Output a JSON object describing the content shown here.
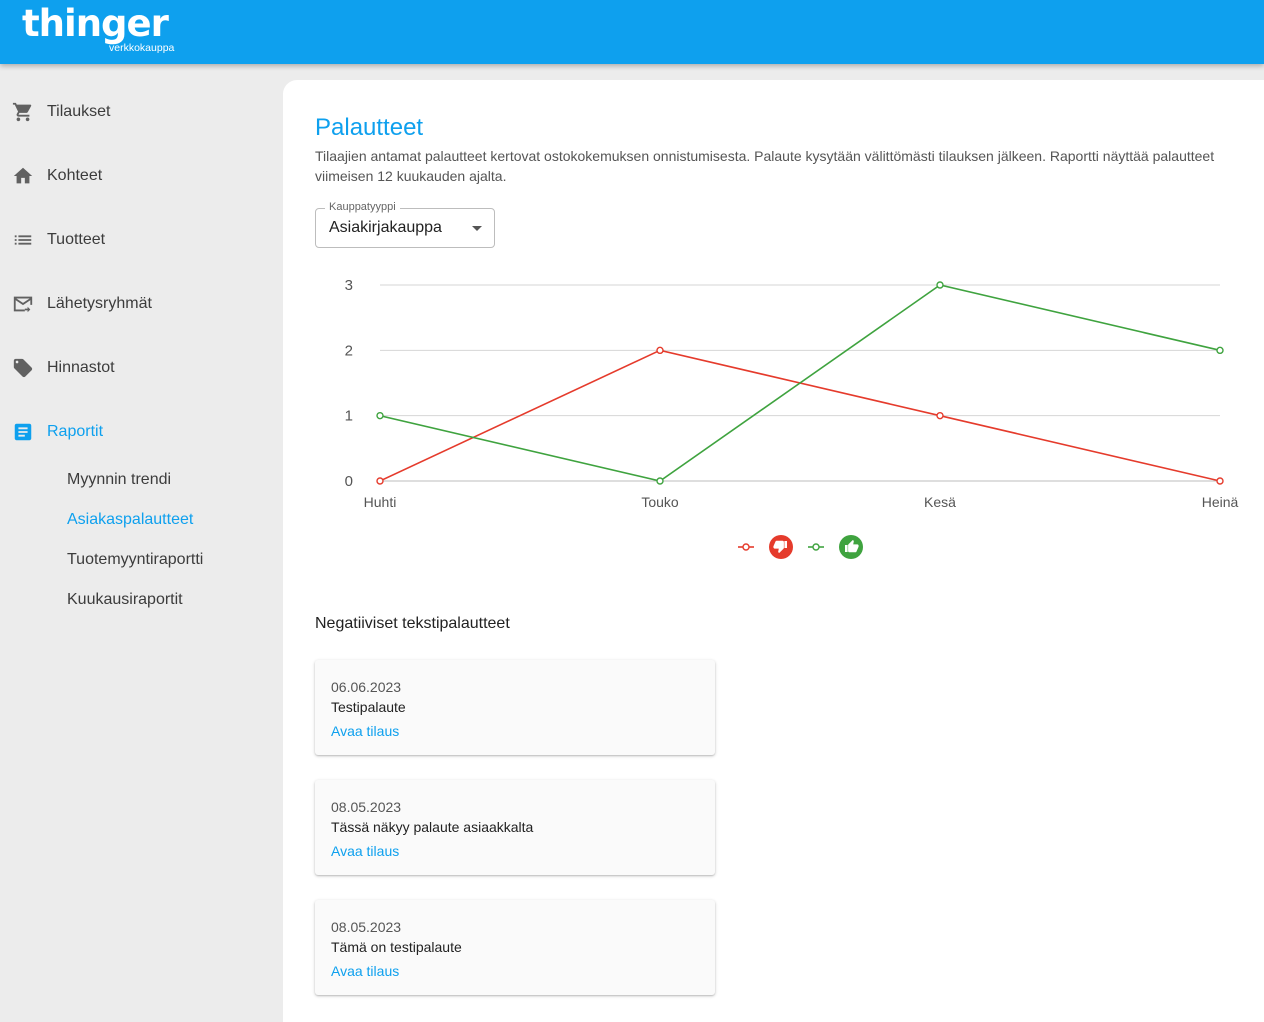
{
  "brand": {
    "name": "thinger",
    "subtitle": "verkkokauppa"
  },
  "sidebar": {
    "items": [
      {
        "label": "Tilaukset",
        "icon": "cart-icon"
      },
      {
        "label": "Kohteet",
        "icon": "home-icon"
      },
      {
        "label": "Tuotteet",
        "icon": "list-icon"
      },
      {
        "label": "Lähetysryhmät",
        "icon": "mail-forward-icon"
      },
      {
        "label": "Hinnastot",
        "icon": "tag-icon"
      },
      {
        "label": "Raportit",
        "icon": "report-icon",
        "active": true
      }
    ],
    "subitems": [
      {
        "label": "Myynnin trendi"
      },
      {
        "label": "Asiakaspalautteet",
        "active": true
      },
      {
        "label": "Tuotemyyntiraportti"
      },
      {
        "label": "Kuukausiraportit"
      }
    ]
  },
  "main": {
    "title": "Palautteet",
    "description": "Tilaajien antamat palautteet kertovat ostokokemuksen onnistumisesta. Palaute kysytään välittömästi tilauksen jälkeen. Raportti näyttää palautteet viimeisen 12 kuukauden ajalta.",
    "select": {
      "label": "Kauppatyyppi",
      "value": "Asiakirjakauppa"
    },
    "negative_title": "Negatiiviset tekstipalautteet",
    "feedback": [
      {
        "date": "06.06.2023",
        "text": "Testipalaute",
        "link": "Avaa tilaus"
      },
      {
        "date": "08.05.2023",
        "text": "Tässä näkyy palaute asiaakkalta",
        "link": "Avaa tilaus"
      },
      {
        "date": "08.05.2023",
        "text": "Tämä on testipalaute",
        "link": "Avaa tilaus"
      }
    ]
  },
  "colors": {
    "accent": "#0ea0ee",
    "negative": "#e53b2c",
    "positive": "#3fa33f"
  },
  "chart_data": {
    "type": "line",
    "categories": [
      "Huhti",
      "Touko",
      "Kesä",
      "Heinä"
    ],
    "series": [
      {
        "icon": "thumb-down-icon",
        "color": "#e53b2c",
        "values": [
          0,
          2,
          1,
          0
        ]
      },
      {
        "icon": "thumb-up-icon",
        "color": "#3fa33f",
        "values": [
          1,
          0,
          3,
          2
        ]
      }
    ],
    "y_ticks": [
      "0",
      "1",
      "2",
      "3"
    ],
    "ylim": [
      0,
      3
    ],
    "grid": true,
    "legend": "bottom-center"
  }
}
